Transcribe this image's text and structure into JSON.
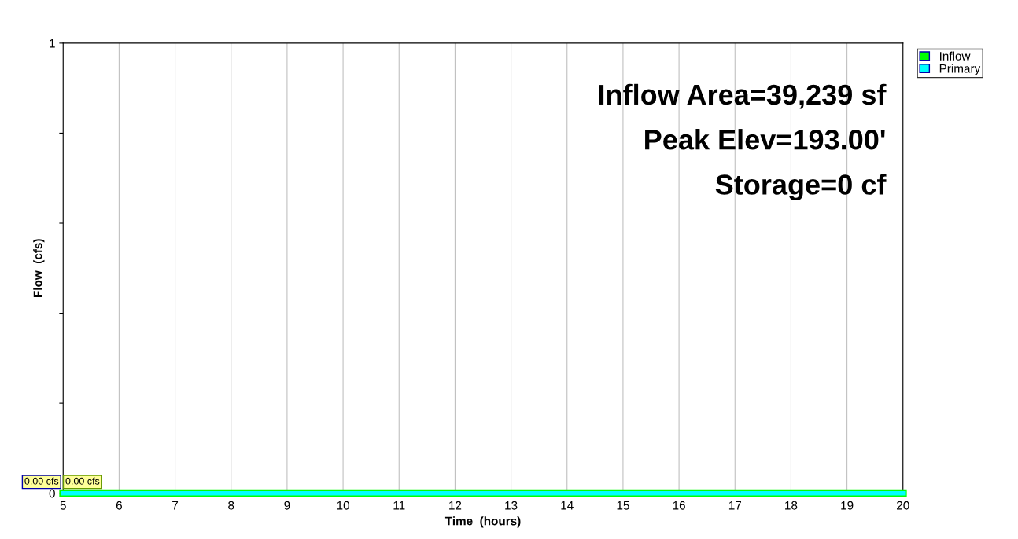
{
  "chart_data": {
    "type": "line",
    "xlabel": "Time  (hours)",
    "ylabel": "Flow  (cfs)",
    "x": [
      5,
      20
    ],
    "series": [
      {
        "name": "Inflow",
        "color": "#00ff00",
        "values": [
          0,
          0
        ],
        "value_labels": [
          "0.00 cfs",
          null
        ]
      },
      {
        "name": "Primary",
        "color": "#00ffff",
        "values": [
          0,
          0
        ],
        "value_labels": [
          "0.00 cfs",
          null
        ]
      }
    ],
    "xlim": [
      5,
      20
    ],
    "xticks": [
      5,
      6,
      7,
      8,
      9,
      10,
      11,
      12,
      13,
      14,
      15,
      16,
      17,
      18,
      19,
      20
    ],
    "ylim": [
      0,
      1
    ],
    "yticks": [
      0,
      {
        "value": 0.2,
        "label": null
      },
      {
        "value": 0.4,
        "label": null
      },
      {
        "value": 0.6,
        "label": null
      },
      {
        "value": 0.8,
        "label": null
      },
      1
    ],
    "grid": "x",
    "legend": "top right",
    "annotations": [
      "Inflow Area=39,239 sf",
      "Peak Elev=193.00'",
      "Storage=0 cf"
    ]
  }
}
